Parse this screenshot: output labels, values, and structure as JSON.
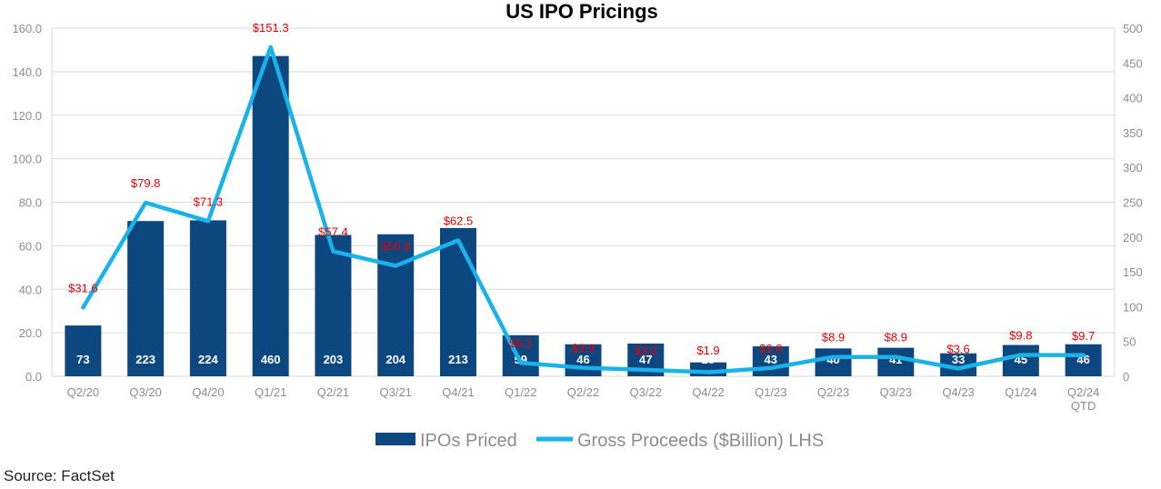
{
  "colors": {
    "bar": "#0d4780",
    "line": "#1ab2ea",
    "proceeds_label": "#e60000",
    "grid": "#d9d9d9",
    "axis_text": "#8c8c8c"
  },
  "chart_data": {
    "type": "bar+line",
    "title": "US IPO Pricings",
    "categories": [
      "Q2/20",
      "Q3/20",
      "Q4/20",
      "Q1/21",
      "Q2/21",
      "Q3/21",
      "Q4/21",
      "Q1/22",
      "Q2/22",
      "Q3/22",
      "Q4/22",
      "Q1/23",
      "Q2/23",
      "Q3/23",
      "Q4/23",
      "Q1/24",
      "Q2/24\nQTD"
    ],
    "series": [
      {
        "name": "IPOs Priced",
        "type": "bar",
        "axis": "right",
        "values": [
          73,
          223,
          224,
          460,
          203,
          204,
          213,
          59,
          46,
          47,
          20,
          43,
          40,
          41,
          33,
          45,
          46
        ],
        "labels": [
          "73",
          "223",
          "224",
          "460",
          "203",
          "204",
          "213",
          "59",
          "46",
          "47",
          "20",
          "43",
          "40",
          "41",
          "33",
          "45",
          "46"
        ]
      },
      {
        "name": "Gross Proceeds ($Billion) LHS",
        "type": "line",
        "axis": "left",
        "values": [
          31.6,
          79.8,
          71.3,
          151.3,
          57.4,
          50.8,
          62.5,
          6.2,
          3.9,
          3.0,
          1.9,
          3.8,
          8.9,
          8.9,
          3.6,
          9.8,
          9.7
        ],
        "labels": [
          "$31.6",
          "$79.8",
          "$71.3",
          "$151.3",
          "$57.4",
          "$50.8",
          "$62.5",
          "$6.2",
          "$3.9",
          "$3.0",
          "$1.9",
          "$3.8",
          "$8.9",
          "$8.9",
          "$3.6",
          "$9.8",
          "$9.7"
        ]
      }
    ],
    "y_left": {
      "min": 0,
      "max": 160,
      "ticks": [
        "0.0",
        "20.0",
        "40.0",
        "60.0",
        "80.0",
        "100.0",
        "120.0",
        "140.0",
        "160.0"
      ]
    },
    "y_right": {
      "min": 0,
      "max": 500,
      "ticks": [
        "0",
        "50",
        "100",
        "150",
        "200",
        "250",
        "300",
        "350",
        "400",
        "450",
        "500"
      ]
    },
    "grid": true,
    "legend_position": "bottom-center",
    "source": "Source: FactSet"
  }
}
